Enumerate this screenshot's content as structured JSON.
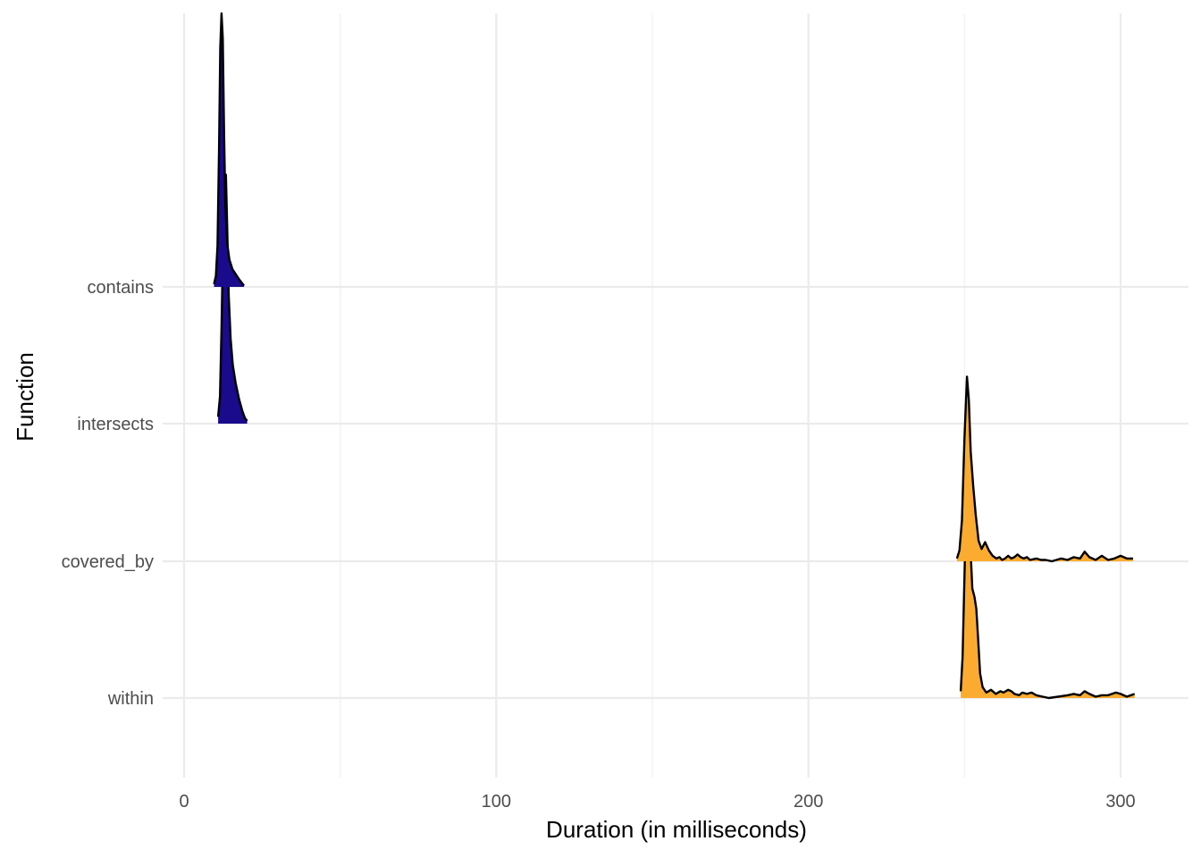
{
  "chart_data": {
    "type": "ridgeline",
    "title": "",
    "xlabel": "Duration (in milliseconds)",
    "ylabel": "Function",
    "xlim": [
      -8,
      322
    ],
    "x_ticks": [
      0,
      100,
      200,
      300
    ],
    "x_minor_ticks": [
      50,
      150,
      250
    ],
    "categories": [
      "contains",
      "intersects",
      "covered_by",
      "within"
    ],
    "grid": true,
    "legend": "none",
    "fill_scale": {
      "low": "#1a0a8c",
      "high": "#ffe600"
    },
    "series": [
      {
        "name": "contains",
        "color": "#1a0a8c",
        "density": [
          [
            9.6,
            0.02
          ],
          [
            10.2,
            0.08
          ],
          [
            10.7,
            0.3
          ],
          [
            11.2,
            1.0
          ],
          [
            11.6,
            1.75
          ],
          [
            12.0,
            2.0
          ],
          [
            12.4,
            1.82
          ],
          [
            12.8,
            1.15
          ],
          [
            13.2,
            0.62
          ],
          [
            13.8,
            0.32
          ],
          [
            14.5,
            0.2
          ],
          [
            15.5,
            0.13
          ],
          [
            16.6,
            0.09
          ],
          [
            17.8,
            0.05
          ],
          [
            18.8,
            0.02
          ],
          [
            19.2,
            0.01
          ]
        ]
      },
      {
        "name": "intersects",
        "color": "#1a0a8c",
        "density": [
          [
            10.9,
            0.05
          ],
          [
            11.5,
            0.2
          ],
          [
            12.0,
            0.7
          ],
          [
            12.5,
            1.35
          ],
          [
            13.0,
            1.8
          ],
          [
            13.4,
            1.82
          ],
          [
            13.8,
            1.45
          ],
          [
            14.3,
            0.93
          ],
          [
            14.9,
            0.62
          ],
          [
            15.6,
            0.43
          ],
          [
            16.5,
            0.3
          ],
          [
            17.6,
            0.18
          ],
          [
            18.7,
            0.09
          ],
          [
            19.5,
            0.04
          ],
          [
            20.2,
            0.02
          ]
        ]
      },
      {
        "name": "covered_by",
        "color": "#fbac30",
        "density": [
          [
            247.6,
            0.02
          ],
          [
            248.4,
            0.08
          ],
          [
            249.2,
            0.3
          ],
          [
            250.0,
            0.9
          ],
          [
            250.8,
            1.35
          ],
          [
            251.4,
            1.18
          ],
          [
            252.0,
            0.8
          ],
          [
            252.8,
            0.55
          ],
          [
            253.6,
            0.34
          ],
          [
            254.5,
            0.15
          ],
          [
            255.5,
            0.09
          ],
          [
            256.6,
            0.14
          ],
          [
            257.8,
            0.08
          ],
          [
            259.0,
            0.04
          ],
          [
            260.2,
            0.02
          ],
          [
            261.2,
            0.03
          ],
          [
            262.0,
            0.01
          ],
          [
            263.0,
            0.02
          ],
          [
            264.0,
            0.04
          ],
          [
            265.0,
            0.02
          ],
          [
            266.0,
            0.03
          ],
          [
            267.0,
            0.05
          ],
          [
            268.0,
            0.03
          ],
          [
            269.0,
            0.02
          ],
          [
            270.0,
            0.03
          ],
          [
            271.0,
            0.01
          ],
          [
            273.0,
            0.02
          ],
          [
            274.5,
            0.01
          ],
          [
            276.0,
            0.01
          ],
          [
            278.0,
            0.0
          ],
          [
            281.0,
            0.02
          ],
          [
            283.0,
            0.01
          ],
          [
            285.0,
            0.03
          ],
          [
            287.0,
            0.02
          ],
          [
            288.5,
            0.07
          ],
          [
            290.0,
            0.03
          ],
          [
            292.0,
            0.01
          ],
          [
            294.0,
            0.04
          ],
          [
            296.0,
            0.01
          ],
          [
            298.0,
            0.02
          ],
          [
            300.0,
            0.04
          ],
          [
            302.0,
            0.02
          ],
          [
            304.0,
            0.02
          ]
        ]
      },
      {
        "name": "within",
        "color": "#fbac30",
        "density": [
          [
            248.8,
            0.05
          ],
          [
            249.4,
            0.3
          ],
          [
            250.1,
            1.0
          ],
          [
            250.8,
            1.35
          ],
          [
            251.3,
            1.33
          ],
          [
            251.9,
            1.1
          ],
          [
            252.5,
            0.8
          ],
          [
            253.2,
            0.74
          ],
          [
            253.8,
            0.65
          ],
          [
            254.4,
            0.42
          ],
          [
            255.0,
            0.18
          ],
          [
            255.8,
            0.08
          ],
          [
            257.0,
            0.04
          ],
          [
            258.5,
            0.06
          ],
          [
            260.0,
            0.03
          ],
          [
            261.5,
            0.05
          ],
          [
            262.5,
            0.04
          ],
          [
            264.0,
            0.06
          ],
          [
            265.0,
            0.05
          ],
          [
            266.0,
            0.03
          ],
          [
            267.5,
            0.02
          ],
          [
            268.5,
            0.04
          ],
          [
            270.0,
            0.03
          ],
          [
            271.5,
            0.04
          ],
          [
            273.0,
            0.02
          ],
          [
            275.0,
            0.01
          ],
          [
            277.0,
            0.0
          ],
          [
            280.0,
            0.01
          ],
          [
            283.0,
            0.02
          ],
          [
            285.0,
            0.03
          ],
          [
            287.0,
            0.02
          ],
          [
            288.5,
            0.05
          ],
          [
            290.0,
            0.03
          ],
          [
            292.0,
            0.01
          ],
          [
            294.0,
            0.02
          ],
          [
            296.0,
            0.02
          ],
          [
            298.5,
            0.04
          ],
          [
            300.0,
            0.03
          ],
          [
            302.0,
            0.01
          ],
          [
            304.5,
            0.03
          ]
        ]
      }
    ]
  }
}
